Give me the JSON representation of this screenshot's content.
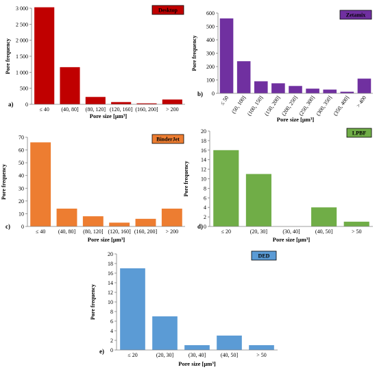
{
  "chart_data": [
    {
      "type": "bar",
      "panel_label": "a)",
      "legend": "Desktop",
      "color": "#c00000",
      "categories": [
        "≤ 40",
        "(40, 80]",
        "(80, 120]",
        "(120, 160]",
        "(160, 200]",
        "> 200"
      ],
      "values": [
        3030,
        1160,
        230,
        70,
        30,
        150
      ],
      "ylabel": "Pore frequency",
      "xlabel": "Pore size [µm³]",
      "ylim": [
        0,
        3000
      ],
      "yticks": [
        0,
        500,
        1000,
        1500,
        2000,
        2500,
        3000
      ],
      "ytick_labels": [
        "0",
        "500",
        "1 000",
        "1 500",
        "2 000",
        "2 500",
        "3 000"
      ]
    },
    {
      "type": "bar",
      "panel_label": "b)",
      "legend": "Zetamix",
      "color": "#7030a0",
      "categories": [
        "≤ 50",
        "(50, 100]",
        "(100, 150]",
        "(150, 200]",
        "(200, 250]",
        "(250, 300]",
        "(300, 350]",
        "(350, 400]",
        "> 400"
      ],
      "values": [
        560,
        240,
        90,
        75,
        55,
        35,
        28,
        12,
        110
      ],
      "ylabel": "Pore frequency",
      "xlabel": "Pore size [µm³]",
      "ylim": [
        0,
        600
      ],
      "yticks": [
        0,
        100,
        200,
        300,
        400,
        500,
        600
      ],
      "ytick_labels": [
        "0",
        "100",
        "200",
        "300",
        "400",
        "500",
        "600"
      ]
    },
    {
      "type": "bar",
      "panel_label": "c)",
      "legend": "BinderJet",
      "color": "#ed7d31",
      "categories": [
        "≤ 40",
        "(40, 80]",
        "(80, 120]",
        "(120, 160]",
        "(160, 200]",
        "> 200"
      ],
      "values": [
        66,
        14,
        8,
        3,
        6,
        14
      ],
      "ylabel": "Pore frequency",
      "xlabel": "Pore size [µm³]",
      "ylim": [
        0,
        70
      ],
      "yticks": [
        0,
        10,
        20,
        30,
        40,
        50,
        60,
        70
      ],
      "ytick_labels": [
        "0",
        "10",
        "20",
        "30",
        "40",
        "50",
        "60",
        "70"
      ]
    },
    {
      "type": "bar",
      "panel_label": "d)",
      "legend": "LPBF",
      "color": "#70ad47",
      "categories": [
        "≤ 20",
        "(20, 30]",
        "(30, 40]",
        "(40, 50]",
        "> 50"
      ],
      "values": [
        16,
        11,
        0,
        4,
        1
      ],
      "ylabel": "Pore frequency",
      "xlabel": "Pore size [µm³]",
      "ylim": [
        0,
        20
      ],
      "yticks": [
        0,
        2,
        4,
        6,
        8,
        10,
        12,
        14,
        16,
        18,
        20
      ],
      "ytick_labels": [
        "0",
        "2",
        "4",
        "6",
        "8",
        "10",
        "12",
        "14",
        "16",
        "18",
        "20"
      ]
    },
    {
      "type": "bar",
      "panel_label": "e)",
      "legend": "DED",
      "color": "#5b9bd5",
      "categories": [
        "≤ 20",
        "(20, 30]",
        "(30, 40]",
        "(40, 50]",
        "> 50"
      ],
      "values": [
        17,
        7,
        1,
        3,
        1
      ],
      "ylabel": "Pore frequency",
      "xlabel": "Pore size [µm³]",
      "ylim": [
        0,
        20
      ],
      "yticks": [
        0,
        2,
        4,
        6,
        8,
        10,
        12,
        14,
        16,
        18,
        20
      ],
      "ytick_labels": [
        "0",
        "2",
        "4",
        "6",
        "8",
        "10",
        "12",
        "14",
        "16",
        "18",
        "20"
      ]
    }
  ]
}
